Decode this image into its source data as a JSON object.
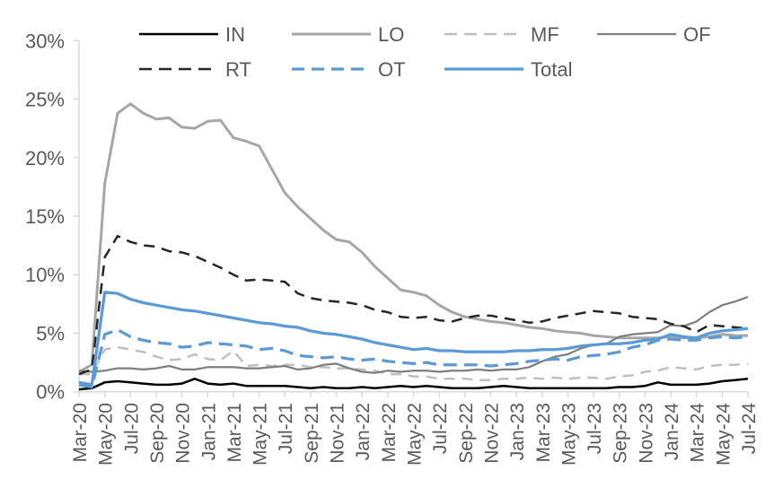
{
  "chart_data": {
    "type": "line",
    "title": "",
    "xlabel": "",
    "ylabel": "",
    "ylim": [
      0,
      30
    ],
    "grid": false,
    "legend_position": "top",
    "y_tick_labels": [
      "0%",
      "5%",
      "10%",
      "15%",
      "20%",
      "25%",
      "30%"
    ],
    "y_tick_values": [
      0,
      5,
      10,
      15,
      20,
      25,
      30
    ],
    "x_tick_labels": [
      "Mar-20",
      "May-20",
      "Jul-20",
      "Sep-20",
      "Nov-20",
      "Jan-21",
      "Mar-21",
      "May-21",
      "Jul-21",
      "Sep-21",
      "Nov-21",
      "Jan-22",
      "Mar-22",
      "May-22",
      "Jul-22",
      "Sep-22",
      "Nov-22",
      "Jan-23",
      "Mar-23",
      "May-23",
      "Jul-23",
      "Sep-23",
      "Nov-23",
      "Jan-24",
      "Mar-24",
      "May-24",
      "Jul-24"
    ],
    "x": [
      "Mar-20",
      "Apr-20",
      "May-20",
      "Jun-20",
      "Jul-20",
      "Aug-20",
      "Sep-20",
      "Oct-20",
      "Nov-20",
      "Dec-20",
      "Jan-21",
      "Feb-21",
      "Mar-21",
      "Apr-21",
      "May-21",
      "Jun-21",
      "Jul-21",
      "Aug-21",
      "Sep-21",
      "Oct-21",
      "Nov-21",
      "Dec-21",
      "Jan-22",
      "Feb-22",
      "Mar-22",
      "Apr-22",
      "May-22",
      "Jun-22",
      "Jul-22",
      "Aug-22",
      "Sep-22",
      "Oct-22",
      "Nov-22",
      "Dec-22",
      "Jan-23",
      "Feb-23",
      "Mar-23",
      "Apr-23",
      "May-23",
      "Jun-23",
      "Jul-23",
      "Aug-23",
      "Sep-23",
      "Oct-23",
      "Nov-23",
      "Dec-23",
      "Jan-24",
      "Feb-24",
      "Mar-24",
      "Apr-24",
      "May-24",
      "Jun-24",
      "Jul-24"
    ],
    "series": [
      {
        "name": "IN",
        "color": "#000000",
        "dash": "solid",
        "width": 2.5,
        "values": [
          0.2,
          0.3,
          0.8,
          0.9,
          0.8,
          0.7,
          0.6,
          0.6,
          0.7,
          1.1,
          0.7,
          0.6,
          0.7,
          0.5,
          0.5,
          0.5,
          0.5,
          0.4,
          0.3,
          0.4,
          0.3,
          0.3,
          0.4,
          0.3,
          0.4,
          0.5,
          0.4,
          0.5,
          0.4,
          0.3,
          0.3,
          0.3,
          0.4,
          0.5,
          0.4,
          0.3,
          0.3,
          0.3,
          0.3,
          0.3,
          0.3,
          0.3,
          0.4,
          0.4,
          0.5,
          0.8,
          0.6,
          0.6,
          0.6,
          0.7,
          0.9,
          1.0,
          1.1
        ]
      },
      {
        "name": "LO",
        "color": "#A6A6A6",
        "dash": "solid",
        "width": 3,
        "values": [
          1.7,
          2.3,
          17.8,
          23.8,
          24.6,
          23.8,
          23.3,
          23.4,
          22.6,
          22.5,
          23.1,
          23.2,
          21.7,
          21.4,
          21.0,
          19.0,
          17.0,
          15.8,
          14.8,
          13.8,
          13.0,
          12.8,
          11.9,
          10.7,
          9.7,
          8.7,
          8.5,
          8.2,
          7.4,
          6.8,
          6.4,
          6.2,
          6.0,
          5.9,
          5.7,
          5.5,
          5.4,
          5.2,
          5.1,
          5.0,
          4.8,
          4.7,
          4.6,
          4.6,
          4.6,
          4.6,
          4.7,
          4.6,
          4.6,
          4.7,
          4.9,
          4.8,
          4.8
        ]
      },
      {
        "name": "MF",
        "color": "#BFBFBF",
        "dash": "dashed",
        "width": 2.5,
        "values": [
          1.5,
          1.5,
          3.6,
          3.8,
          3.6,
          3.4,
          3.0,
          2.7,
          2.8,
          3.2,
          2.8,
          2.7,
          3.5,
          2.2,
          2.3,
          2.2,
          2.3,
          2.3,
          2.1,
          2.1,
          2.0,
          2.0,
          1.9,
          1.8,
          1.5,
          1.5,
          1.3,
          1.3,
          1.1,
          1.1,
          1.1,
          1.0,
          1.0,
          1.1,
          1.1,
          1.2,
          1.1,
          1.2,
          1.1,
          1.2,
          1.2,
          1.1,
          1.3,
          1.4,
          1.7,
          1.8,
          2.1,
          2.0,
          1.9,
          2.2,
          2.3,
          2.3,
          2.4
        ]
      },
      {
        "name": "OF",
        "color": "#7F7F7F",
        "dash": "solid",
        "width": 2.25,
        "values": [
          1.8,
          1.7,
          1.8,
          2.0,
          2.0,
          1.9,
          2.0,
          2.2,
          1.9,
          1.9,
          2.1,
          2.1,
          2.1,
          2.0,
          2.0,
          2.1,
          2.2,
          1.9,
          2.0,
          2.3,
          2.4,
          2.0,
          1.7,
          1.6,
          1.8,
          1.7,
          1.8,
          1.8,
          1.7,
          1.8,
          1.8,
          1.9,
          1.8,
          1.9,
          1.9,
          2.1,
          2.6,
          3.0,
          3.2,
          3.7,
          4.0,
          4.1,
          4.7,
          4.9,
          5.0,
          5.1,
          5.7,
          5.6,
          6.0,
          6.8,
          7.4,
          7.7,
          8.1
        ]
      },
      {
        "name": "RT",
        "color": "#262626",
        "dash": "dashed",
        "width": 2.5,
        "values": [
          1.5,
          1.9,
          11.5,
          13.3,
          12.8,
          12.5,
          12.4,
          12.0,
          11.9,
          11.6,
          11.1,
          10.6,
          10.0,
          9.5,
          9.6,
          9.5,
          9.4,
          8.4,
          8.0,
          7.8,
          7.7,
          7.6,
          7.4,
          7.0,
          6.8,
          6.4,
          6.3,
          6.4,
          6.1,
          6.0,
          6.3,
          6.5,
          6.5,
          6.3,
          6.1,
          5.9,
          6.0,
          6.3,
          6.5,
          6.7,
          6.9,
          6.8,
          6.7,
          6.4,
          6.3,
          6.2,
          5.8,
          5.6,
          5.1,
          5.7,
          5.6,
          5.5,
          5.4
        ]
      },
      {
        "name": "OT",
        "color": "#5B9BD5",
        "dash": "dashed",
        "width": 3.25,
        "values": [
          0.6,
          0.4,
          4.9,
          5.3,
          4.7,
          4.4,
          4.2,
          4.1,
          3.8,
          3.9,
          4.2,
          4.1,
          4.0,
          3.9,
          3.6,
          3.7,
          3.5,
          3.1,
          3.0,
          2.9,
          3.0,
          2.8,
          2.7,
          2.8,
          2.6,
          2.5,
          2.4,
          2.5,
          2.3,
          2.3,
          2.3,
          2.3,
          2.2,
          2.3,
          2.4,
          2.6,
          2.7,
          2.8,
          2.7,
          3.0,
          3.1,
          3.2,
          3.4,
          3.8,
          4.0,
          4.4,
          4.5,
          4.4,
          4.4,
          4.6,
          4.7,
          4.6,
          4.7
        ]
      },
      {
        "name": "Total",
        "color": "#5B9BD5",
        "dash": "solid",
        "width": 3.25,
        "values": [
          0.8,
          0.6,
          8.5,
          8.4,
          7.9,
          7.6,
          7.4,
          7.2,
          7.0,
          6.9,
          6.7,
          6.5,
          6.3,
          6.1,
          5.9,
          5.8,
          5.6,
          5.5,
          5.2,
          5.0,
          4.9,
          4.7,
          4.5,
          4.2,
          4.0,
          3.8,
          3.6,
          3.7,
          3.5,
          3.5,
          3.4,
          3.4,
          3.4,
          3.4,
          3.5,
          3.5,
          3.6,
          3.6,
          3.7,
          3.9,
          4.0,
          4.1,
          4.1,
          4.2,
          4.4,
          4.5,
          4.9,
          4.7,
          4.6,
          5.0,
          5.2,
          5.3,
          5.4
        ]
      }
    ]
  },
  "style": {
    "axis_color": "#D9D9D9",
    "tick_label_color": "#595959",
    "legend_label_color": "#595959",
    "background": "#FFFFFF"
  }
}
